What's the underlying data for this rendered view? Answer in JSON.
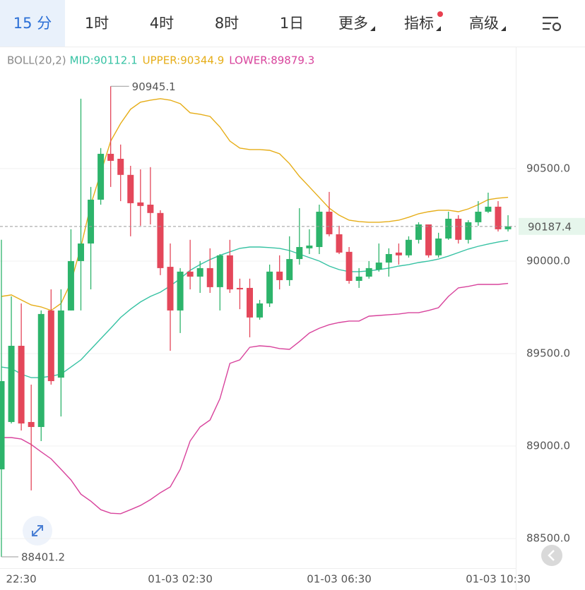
{
  "toolbar": {
    "tabs": [
      "15 分",
      "1时",
      "4时",
      "8时",
      "1日",
      "更多",
      "指标",
      "高级"
    ],
    "active": 0
  },
  "chart_data": {
    "type": "candlestick",
    "indicator": "BOLL(20,2)",
    "categories": [
      null,
      null,
      "22:30",
      null,
      null,
      null,
      null,
      null,
      null,
      null,
      null,
      null,
      null,
      null,
      null,
      null,
      null,
      null,
      "01-03 02:30",
      null,
      null,
      null,
      null,
      null,
      null,
      null,
      null,
      null,
      null,
      null,
      null,
      null,
      null,
      null,
      "01-03 06:30",
      null,
      null,
      null,
      null,
      null,
      null,
      null,
      null,
      null,
      null,
      null,
      null,
      null,
      null,
      null,
      "01-03 10:30",
      null
    ],
    "open": [
      88874,
      89130,
      89542,
      89130,
      89103,
      89733,
      89370,
      89733,
      90000,
      90095,
      90332,
      90580,
      90553,
      90466,
      90317,
      90305,
      90260,
      89969,
      89733,
      89943,
      89916,
      89962,
      89859,
      90031,
      89855,
      89855,
      89695,
      89771,
      89943,
      89897,
      90011,
      90069,
      90076,
      90267,
      90145,
      90050,
      89893,
      89916,
      89954,
      89992,
      90046,
      90031,
      90115,
      90198,
      90031,
      90122,
      90229,
      90115,
      90210,
      90267,
      90294,
      90172
    ],
    "high": [
      90115,
      89809,
      89771,
      89332,
      89733,
      89847,
      89847,
      90172,
      90878,
      90401,
      90611,
      90945.1,
      90630,
      90515,
      90496,
      90508,
      90275,
      90095,
      89962,
      90115,
      90000,
      90069,
      90038,
      90115,
      89905,
      89905,
      89790,
      89981,
      90031,
      90134,
      90286,
      90172,
      90305,
      90374,
      90191,
      90076,
      89962,
      90000,
      90095,
      90069,
      90095,
      90134,
      90210,
      90198,
      90153,
      90267,
      90248,
      90221,
      90324,
      90370,
      90324,
      90248
    ],
    "low": [
      88401.2,
      89122,
      89084,
      88760,
      89027,
      89332,
      89160,
      89733,
      89733,
      89847,
      90305,
      90401,
      90324,
      90134,
      90191,
      90198,
      89924,
      89515,
      89611,
      89847,
      89828,
      89828,
      89733,
      89828,
      89740,
      89588,
      89683,
      89752,
      89847,
      89866,
      89981,
      90038,
      90038,
      90134,
      90038,
      89878,
      89855,
      89905,
      89943,
      89916,
      89981,
      90019,
      90095,
      90019,
      90019,
      90115,
      90095,
      90095,
      90191,
      90260,
      90160,
      90160
    ],
    "close": [
      89351,
      89542,
      89122,
      89103,
      89714,
      89351,
      89733,
      90000,
      90095,
      90332,
      90580,
      90542,
      90466,
      90313,
      90298,
      90260,
      89962,
      89733,
      89943,
      89916,
      89962,
      89859,
      90031,
      89847,
      89847,
      89695,
      89771,
      89943,
      89897,
      90011,
      90076,
      90084,
      90267,
      90145,
      90046,
      89893,
      89916,
      89962,
      89992,
      90038,
      90031,
      90115,
      90198,
      90031,
      90122,
      90229,
      90115,
      90210,
      90267,
      90294,
      90172,
      90187.4
    ],
    "up_color": "#2db46b",
    "down_color": "#e4475a",
    "series": [
      {
        "name": "MID:90112.1",
        "color": "#36c2a3",
        "values": [
          89427,
          89420,
          89389,
          89370,
          89370,
          89378,
          89389,
          89427,
          89466,
          89523,
          89580,
          89637,
          89695,
          89740,
          89779,
          89809,
          89832,
          89866,
          89905,
          89950,
          89981,
          90008,
          90031,
          90050,
          90069,
          90076,
          90076,
          90073,
          90069,
          90057,
          90038,
          90019,
          90000,
          89973,
          89954,
          89943,
          89943,
          89947,
          89954,
          89962,
          89973,
          89981,
          89992,
          90000,
          90011,
          90027,
          90046,
          90065,
          90080,
          90092,
          90103,
          90112.1
        ]
      },
      {
        "name": "UPPER:90344.9",
        "color": "#e6ad17",
        "values": [
          89809,
          89817,
          89790,
          89763,
          89752,
          89733,
          89771,
          89885,
          90076,
          90305,
          90477,
          90649,
          90744,
          90821,
          90859,
          90870,
          90878,
          90870,
          90851,
          90802,
          90794,
          90782,
          90725,
          90649,
          90611,
          90603,
          90603,
          90599,
          90580,
          90527,
          90458,
          90401,
          90344,
          90286,
          90248,
          90221,
          90214,
          90210,
          90210,
          90214,
          90221,
          90237,
          90256,
          90267,
          90275,
          90275,
          90267,
          90282,
          90305,
          90332,
          90340,
          90344.9
        ]
      },
      {
        "name": "LOWER:89879.3",
        "color": "#d8439c",
        "values": [
          89046,
          89046,
          89038,
          89008,
          88969,
          88931,
          88874,
          88817,
          88740,
          88702,
          88656,
          88637,
          88634,
          88656,
          88679,
          88710,
          88748,
          88779,
          88874,
          89027,
          89103,
          89141,
          89256,
          89447,
          89466,
          89534,
          89542,
          89538,
          89527,
          89523,
          89565,
          89611,
          89637,
          89656,
          89668,
          89676,
          89676,
          89702,
          89706,
          89710,
          89714,
          89721,
          89721,
          89733,
          89748,
          89809,
          89855,
          89863,
          89874,
          89874,
          89874,
          89879.3
        ]
      }
    ],
    "ylim": [
      88340,
      91030
    ],
    "yticks": [
      {
        "value": 88500,
        "label": "88500.0"
      },
      {
        "value": 89000,
        "label": "89000.0"
      },
      {
        "value": 89500,
        "label": "89500.0"
      },
      {
        "value": 90000,
        "label": "90000.0"
      },
      {
        "value": 90500,
        "label": "90500.0"
      }
    ],
    "grid": true
  }
}
